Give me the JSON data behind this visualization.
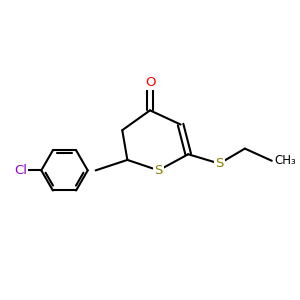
{
  "background_color": "#FFFFFF",
  "atom_colors": {
    "O": "#FF0000",
    "S": "#8B8000",
    "Cl": "#9900CC",
    "C": "#000000"
  },
  "bond_color": "#000000",
  "bond_width": 1.5,
  "font_size_atom": 9.5,
  "figsize": [
    3.0,
    3.0
  ],
  "dpi": 100,
  "xlim": [
    0,
    10
  ],
  "ylim": [
    0,
    10
  ]
}
